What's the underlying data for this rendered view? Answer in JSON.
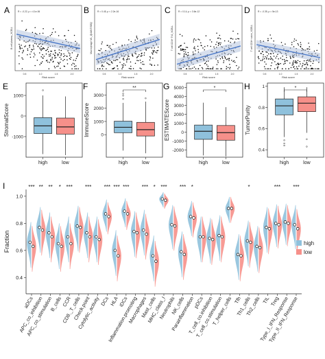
{
  "scatter_panels": [
    {
      "letter": "A",
      "stat": "R = -0.22, p = 4.1e-06",
      "xlabel": "Risk score",
      "ylabel": "B cell plasma_XCELL",
      "xticks": [
        "0.5",
        "1.0",
        "1.5",
        "2.0"
      ],
      "fit": [
        0.44,
        0.66
      ],
      "trend": -0.16,
      "scatter": 0.27,
      "center": 0.67,
      "seed": 11
    },
    {
      "letter": "B",
      "stat": "R = 0.45, p < 2.2e-16",
      "xlabel": "Risk score",
      "ylabel": "Macrophage M1_QUANTISEQ",
      "xticks": [
        "0.5",
        "1.0",
        "1.5",
        "2.0"
      ],
      "fit": [
        0.83,
        0.52
      ],
      "trend": 0.22,
      "scatter": 0.25,
      "center": 0.75,
      "seed": 23
    },
    {
      "letter": "C",
      "stat": "R = 0.14, p = 3.6e-12",
      "xlabel": "Risk score",
      "ylabel": "T cell CD4+ Th2_XCELL",
      "xticks": [
        "0.5",
        "1.0",
        "1.5",
        "2.0"
      ],
      "fit": [
        0.9,
        0.62
      ],
      "trend": 0.08,
      "scatter": 0.3,
      "center": 0.74,
      "seed": 37
    },
    {
      "letter": "D",
      "stat": "R = -0.35, p = 5e-13",
      "xlabel": "Risk score",
      "ylabel": "T cell CD4+ naive_XCELL",
      "xticks": [
        "0.5",
        "1.0",
        "1.5",
        "2.0"
      ],
      "fit": [
        0.6,
        0.8
      ],
      "trend": -0.12,
      "scatter": 0.26,
      "center": 0.8,
      "seed": 53
    }
  ],
  "box_panels": [
    {
      "letter": "E",
      "ylabel": "StromalScore",
      "sig": "",
      "ylim": [
        -2000,
        1600
      ],
      "yticks": [
        -1000,
        0,
        1000
      ],
      "groups": [
        {
          "name": "high",
          "q1": -850,
          "median": -480,
          "q3": -80,
          "lo": -1850,
          "hi": 1000,
          "out": [
            1250
          ]
        },
        {
          "name": "low",
          "q1": -880,
          "median": -530,
          "q3": -100,
          "lo": -1900,
          "hi": 950,
          "out": []
        }
      ]
    },
    {
      "letter": "F",
      "ylabel": "ImmuneScore",
      "sig": "**",
      "ylim": [
        -1700,
        3900
      ],
      "yticks": [
        0,
        1000,
        2000,
        3000
      ],
      "groups": [
        {
          "name": "high",
          "q1": 150,
          "median": 560,
          "q3": 1020,
          "lo": -1200,
          "hi": 2400,
          "out": [
            2700,
            2950,
            3100
          ]
        },
        {
          "name": "low",
          "q1": -100,
          "median": 380,
          "q3": 930,
          "lo": -1400,
          "hi": 2500,
          "out": [
            2750
          ]
        }
      ]
    },
    {
      "letter": "G",
      "ylabel": "ESTIMATEScore",
      "sig": "*",
      "ylim": [
        -2800,
        5500
      ],
      "yticks": [
        -2000,
        -1000,
        0,
        1000,
        2000,
        3000,
        4000,
        5000
      ],
      "groups": [
        {
          "name": "high",
          "q1": -800,
          "median": 100,
          "q3": 800,
          "lo": -2600,
          "hi": 3300,
          "out": []
        },
        {
          "name": "low",
          "q1": -900,
          "median": -50,
          "q3": 750,
          "lo": -2700,
          "hi": 2800,
          "out": []
        }
      ]
    },
    {
      "letter": "H",
      "ylabel": "TumorPurity",
      "sig": "*",
      "ylim": [
        0.33,
        1.03
      ],
      "yticks": [
        0.4,
        0.6,
        0.8,
        1.0
      ],
      "groups": [
        {
          "name": "high",
          "q1": 0.73,
          "median": 0.815,
          "q3": 0.88,
          "lo": 0.52,
          "hi": 0.99,
          "out": [
            0.49,
            0.46,
            0.44
          ]
        },
        {
          "name": "low",
          "q1": 0.76,
          "median": 0.84,
          "q3": 0.9,
          "lo": 0.56,
          "hi": 0.99,
          "out": [
            0.5,
            0.43
          ]
        }
      ]
    }
  ],
  "violin_panel": {
    "letter": "I",
    "ylabel": "Fraction",
    "ylim": [
      0.28,
      1.05
    ],
    "yticks": [
      "0.4",
      "0.6",
      "0.8",
      "1.0"
    ],
    "legend": [
      "high",
      "low"
    ],
    "categories": [
      "aDCs",
      "APC_co_inhibition",
      "APC_co_stimulation",
      "B_cells",
      "CCR",
      "CD8._T_cells",
      "Check.point",
      "Cytolytic_activity",
      "DCs",
      "HLA",
      "iDCs",
      "Inflammation.promoting",
      "Macrophages",
      "Mast_cells",
      "MHC_class_I",
      "Neutrophils",
      "NK_cells",
      "Parainflammation",
      "pDCs",
      "T_cell_co.inhibition",
      "T_cell_co.stimulation",
      "T_helper_cells",
      "Tfh",
      "Th1_cells",
      "Th2_cells",
      "TIL",
      "Treg",
      "Type_I_IFN_Response",
      "Type_II_IFN_Response"
    ],
    "sig": [
      "***",
      "**",
      "**",
      "*",
      "***",
      "",
      "***",
      "",
      "***",
      "***",
      "***",
      "",
      "***",
      "*",
      "***",
      "",
      "***",
      "*",
      "",
      "",
      "",
      "",
      "",
      "*",
      "",
      "",
      "***",
      "",
      "***"
    ],
    "high_median": [
      0.66,
      0.77,
      0.73,
      0.65,
      0.7,
      0.78,
      0.73,
      0.7,
      0.87,
      0.6,
      0.89,
      0.74,
      0.75,
      0.56,
      0.98,
      0.79,
      0.59,
      0.85,
      0.7,
      0.69,
      0.71,
      0.91,
      0.57,
      0.67,
      0.63,
      0.77,
      0.8,
      0.81,
      0.79
    ],
    "low_median": [
      0.63,
      0.75,
      0.7,
      0.63,
      0.65,
      0.77,
      0.7,
      0.68,
      0.85,
      0.56,
      0.87,
      0.73,
      0.72,
      0.52,
      0.97,
      0.78,
      0.57,
      0.84,
      0.7,
      0.68,
      0.7,
      0.91,
      0.56,
      0.66,
      0.62,
      0.76,
      0.79,
      0.8,
      0.76
    ]
  },
  "colors": {
    "high": "#8fc1dc",
    "low": "#f6908a",
    "line": "#4a78c8",
    "points": "#000000"
  }
}
